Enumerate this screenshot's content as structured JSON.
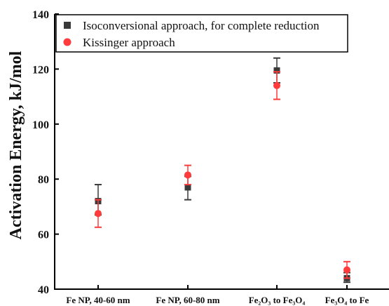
{
  "chart_data": {
    "type": "scatter",
    "title": "",
    "xlabel": "",
    "ylabel": "Activation Energy, kJ/mol",
    "categories": [
      "Fe NP, 40-60 nm",
      "Fe NP, 60-80 nm",
      "Fe₂O₃ to Fe₃O₄",
      "Fe₃O₄ to Fe"
    ],
    "ylim": [
      40,
      140
    ],
    "yticks": [
      40,
      60,
      80,
      100,
      120,
      140
    ],
    "grid": false,
    "legend_position": "top",
    "series": [
      {
        "name": "Isoconversional approach, for complete reduction",
        "marker": "square",
        "color": "#3a3a3a",
        "values": [
          72,
          77,
          119.5,
          44
        ],
        "error_low": [
          67,
          72.5,
          115,
          42.5
        ],
        "error_high": [
          78,
          81,
          124,
          46
        ]
      },
      {
        "name": "Kissinger approach",
        "marker": "circle",
        "color": "#ff3b3b",
        "values": [
          67.5,
          81.5,
          114,
          47
        ],
        "error_low": [
          62.5,
          78,
          109,
          44
        ],
        "error_high": [
          72.5,
          85,
          119,
          50
        ]
      }
    ]
  }
}
